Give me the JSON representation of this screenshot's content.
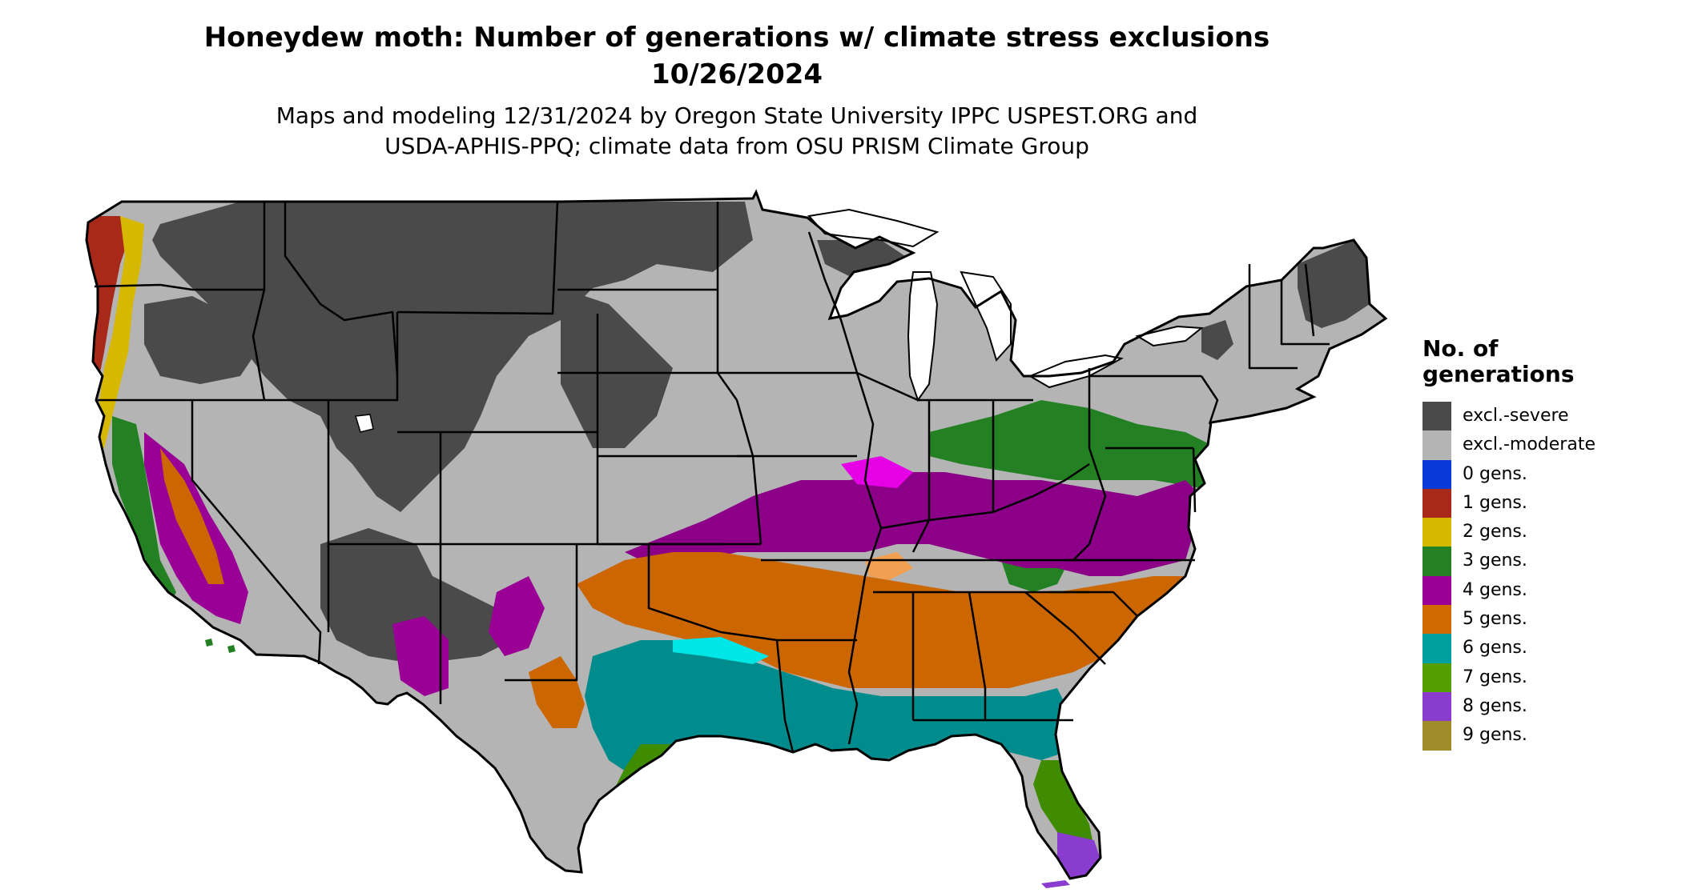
{
  "title": {
    "line1": "Honeydew moth: Number of generations w/ climate stress exclusions",
    "line2": "10/26/2024"
  },
  "subtitle": {
    "line1": "Maps and modeling 12/31/2024 by Oregon State University IPPC USPEST.ORG and",
    "line2": "USDA-APHIS-PPQ; climate data from OSU PRISM Climate Group"
  },
  "legend": {
    "title_line1": "No. of",
    "title_line2": "generations",
    "items": [
      {
        "label": "excl.-severe",
        "color": "#4a4a4a"
      },
      {
        "label": "excl.-moderate",
        "color": "#b4b4b4"
      },
      {
        "label": "0 gens.",
        "color": "#0a3ad8"
      },
      {
        "label": "1 gens.",
        "color": "#a8291a"
      },
      {
        "label": "2 gens.",
        "color": "#d6b800"
      },
      {
        "label": "3 gens.",
        "color": "#238023"
      },
      {
        "label": "4 gens.",
        "color": "#9a0096"
      },
      {
        "label": "5 gens.",
        "color": "#d06a00"
      },
      {
        "label": "6 gens.",
        "color": "#00a0a0"
      },
      {
        "label": "7 gens.",
        "color": "#55a000"
      },
      {
        "label": "8 gens.",
        "color": "#8a3ccf"
      },
      {
        "label": "9 gens.",
        "color": "#9e8c28"
      }
    ]
  },
  "map": {
    "region_colors": {
      "severe": "#4a4a4a",
      "moderate": "#b4b4b4",
      "one": "#a8291a",
      "two": "#d6b800",
      "three": "#238023",
      "four": "#8b0087",
      "four_light": "#e600e6",
      "five": "#cc6600",
      "five_light": "#f0a050",
      "six": "#008c8c",
      "six_light": "#00e6e6",
      "seven": "#3f8c00",
      "eight": "#8a3ccf"
    }
  }
}
